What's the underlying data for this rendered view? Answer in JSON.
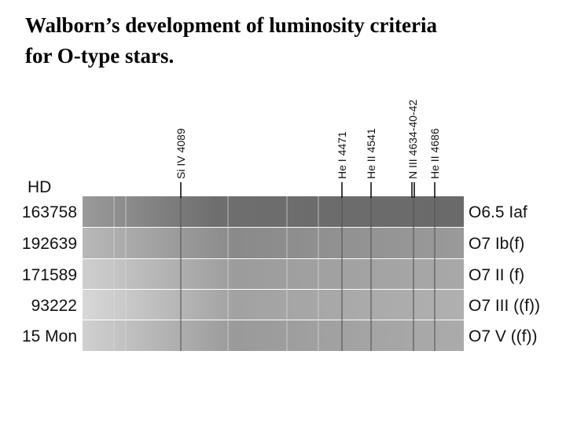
{
  "title": [
    "Walborn’s development of luminosity criteria",
    "for O-type stars."
  ],
  "spectrum": {
    "lines": [
      "Si IV 4089",
      "He I 4471",
      "He II 4541",
      "N III 4634-40-42",
      "He II 4686"
    ],
    "column_header": "HD",
    "rows": [
      {
        "star": "163758",
        "type": "O6.5 Iaf"
      },
      {
        "star": "192639",
        "type": "O7 Ib(f)"
      },
      {
        "star": "171589",
        "type": "O7 II (f)"
      },
      {
        "star": "93222",
        "type": "O7 III ((f))"
      },
      {
        "star": "15 Mon",
        "type": "O7 V ((f))"
      }
    ]
  }
}
